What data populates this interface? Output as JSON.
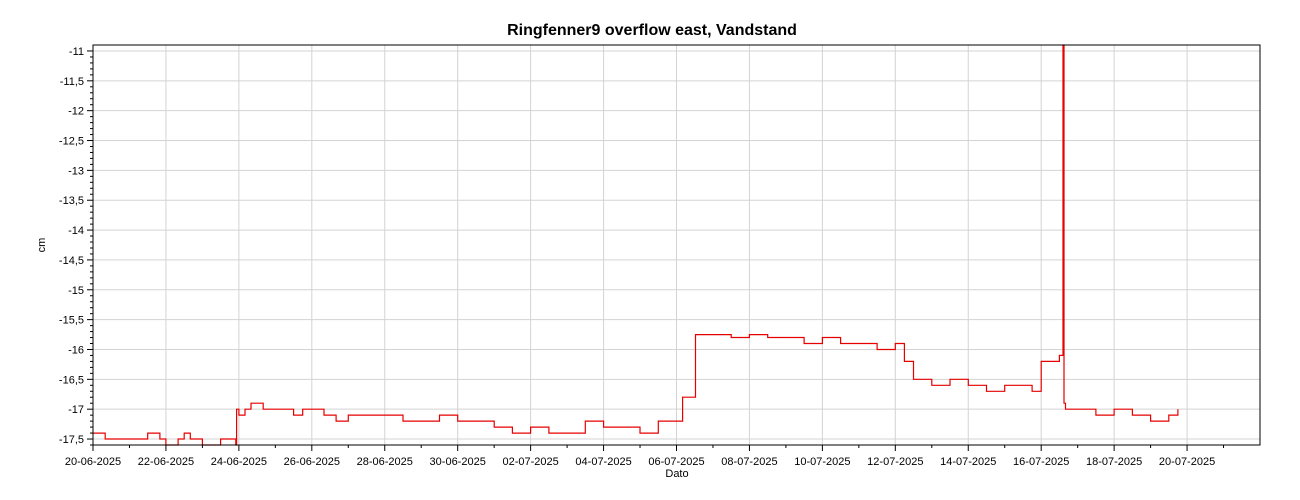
{
  "chart_data": {
    "type": "line",
    "title": "Ringfenner9 overflow east, Vandstand",
    "xlabel": "Dato",
    "ylabel": "cm",
    "x_ticks": [
      "20-06-2025",
      "22-06-2025",
      "24-06-2025",
      "26-06-2025",
      "28-06-2025",
      "30-06-2025",
      "02-07-2025",
      "04-07-2025",
      "06-07-2025",
      "08-07-2025",
      "10-07-2025",
      "12-07-2025",
      "14-07-2025",
      "16-07-2025",
      "18-07-2025",
      "20-07-2025"
    ],
    "y_ticks": [
      "-11",
      "-11,5",
      "-12",
      "-12,5",
      "-13",
      "-13,5",
      "-14",
      "-14,5",
      "-15",
      "-15,5",
      "-16",
      "-16,5",
      "-17",
      "-17,5"
    ],
    "xlim": [
      "2025-06-20",
      "2025-07-22"
    ],
    "ylim": [
      -17.6,
      -10.9
    ],
    "grid": true,
    "colors": {
      "series": "#e60000"
    },
    "series": [
      {
        "x": [
          "2025-06-20T00:00",
          "2025-06-20T08:00",
          "2025-06-20T12:00",
          "2025-06-21T12:00",
          "2025-06-21T20:00",
          "2025-06-22T00:00",
          "2025-06-22T08:00",
          "2025-06-22T12:00",
          "2025-06-22T16:00",
          "2025-06-23T00:00",
          "2025-06-23T12:00",
          "2025-06-23T22:00",
          "2025-06-23T22:30",
          "2025-06-24T00:00",
          "2025-06-24T04:00",
          "2025-06-24T08:00",
          "2025-06-24T16:00",
          "2025-06-25T00:00",
          "2025-06-25T12:00",
          "2025-06-25T18:00",
          "2025-06-26T00:00",
          "2025-06-26T08:00",
          "2025-06-26T16:00",
          "2025-06-27T00:00",
          "2025-06-27T12:00",
          "2025-06-28T00:00",
          "2025-06-28T12:00",
          "2025-06-29T00:00",
          "2025-06-29T12:00",
          "2025-06-30T00:00",
          "2025-06-30T12:00",
          "2025-07-01T00:00",
          "2025-07-01T12:00",
          "2025-07-02T00:00",
          "2025-07-02T12:00",
          "2025-07-03T00:00",
          "2025-07-03T12:00",
          "2025-07-04T00:00",
          "2025-07-04T12:00",
          "2025-07-05T00:00",
          "2025-07-05T12:00",
          "2025-07-05T20:00",
          "2025-07-06T04:00",
          "2025-07-06T12:00",
          "2025-07-06T12:30",
          "2025-07-07T00:00",
          "2025-07-07T12:00",
          "2025-07-08T00:00",
          "2025-07-08T12:00",
          "2025-07-09T00:00",
          "2025-07-09T12:00",
          "2025-07-10T00:00",
          "2025-07-10T12:00",
          "2025-07-11T00:00",
          "2025-07-11T12:00",
          "2025-07-12T00:00",
          "2025-07-12T06:00",
          "2025-07-12T12:00",
          "2025-07-12T16:00",
          "2025-07-13T00:00",
          "2025-07-13T12:00",
          "2025-07-14T00:00",
          "2025-07-14T12:00",
          "2025-07-15T00:00",
          "2025-07-15T12:00",
          "2025-07-15T18:00",
          "2025-07-16T00:00",
          "2025-07-16T12:00",
          "2025-07-16T14:00",
          "2025-07-16T14:20",
          "2025-07-16T15:00",
          "2025-07-16T16:00",
          "2025-07-17T00:00",
          "2025-07-17T12:00",
          "2025-07-18T00:00",
          "2025-07-18T12:00",
          "2025-07-19T00:00",
          "2025-07-19T12:00",
          "2025-07-19T18:00"
        ],
        "y": [
          -17.4,
          -17.5,
          -17.5,
          -17.4,
          -17.5,
          -17.6,
          -17.5,
          -17.4,
          -17.5,
          -17.6,
          -17.5,
          -17.6,
          -17.0,
          -17.1,
          -17.0,
          -16.9,
          -17.0,
          -17.0,
          -17.1,
          -17.0,
          -17.0,
          -17.1,
          -17.2,
          -17.1,
          -17.1,
          -17.1,
          -17.2,
          -17.2,
          -17.1,
          -17.2,
          -17.2,
          -17.3,
          -17.4,
          -17.3,
          -17.4,
          -17.4,
          -17.2,
          -17.3,
          -17.3,
          -17.4,
          -17.2,
          -17.2,
          -16.8,
          -16.8,
          -15.75,
          -15.75,
          -15.8,
          -15.75,
          -15.8,
          -15.8,
          -15.9,
          -15.8,
          -15.9,
          -15.9,
          -16.0,
          -15.9,
          -16.2,
          -16.5,
          -16.5,
          -16.6,
          -16.5,
          -16.6,
          -16.7,
          -16.6,
          -16.6,
          -16.7,
          -16.2,
          -16.1,
          -16.1,
          -10.9,
          -16.9,
          -17.0,
          -17.0,
          -17.1,
          -17.0,
          -17.1,
          -17.2,
          -17.1,
          -17.0
        ]
      }
    ]
  }
}
